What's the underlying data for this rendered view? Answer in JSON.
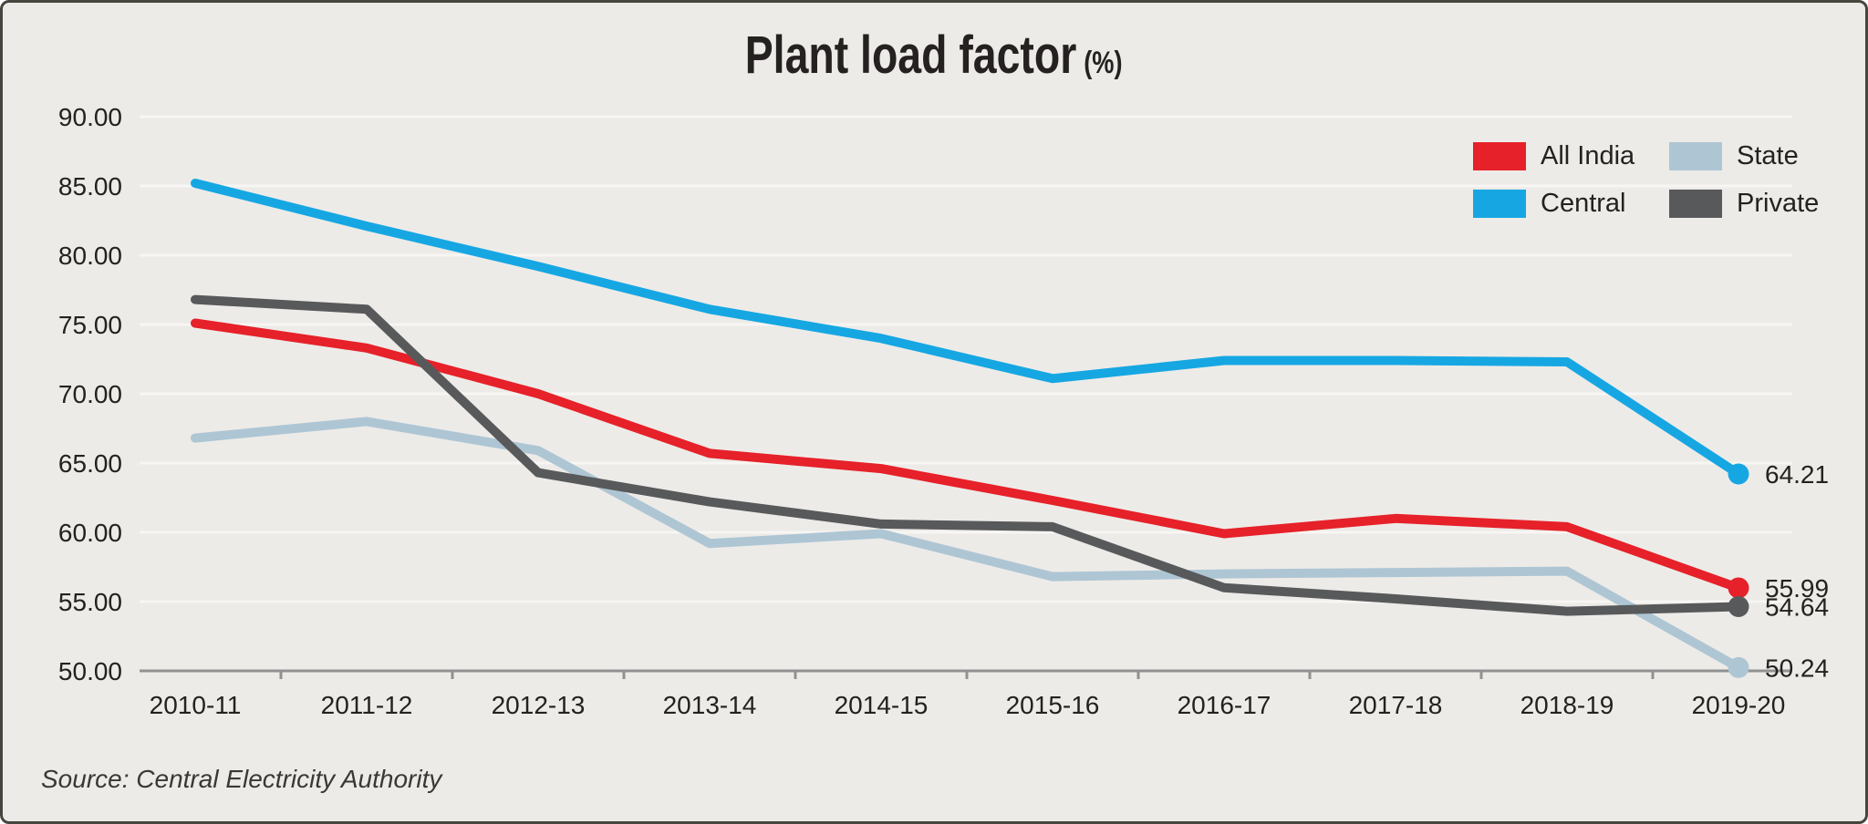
{
  "title": {
    "main": "Plant load factor",
    "unit": "(%)"
  },
  "source": "Source: Central Electricity Authority",
  "legend": {
    "items": [
      "All India",
      "State",
      "Central",
      "Private"
    ]
  },
  "colors": {
    "panel_bg": "#edebe8",
    "panel_border": "#48453f",
    "grid": "#f7f6f3",
    "axis": "#919191",
    "text": "#242120",
    "all_india": "#e62129",
    "central": "#16a7e3",
    "state": "#aec6d4",
    "private": "#58595b"
  },
  "chart_data": {
    "type": "line",
    "title": "Plant load factor (%)",
    "xlabel": "",
    "ylabel": "",
    "ylim": [
      50,
      90
    ],
    "grid": true,
    "legend_position": "top-right",
    "categories": [
      "2010-11",
      "2011-12",
      "2012-13",
      "2013-14",
      "2014-15",
      "2015-16",
      "2016-17",
      "2017-18",
      "2018-19",
      "2019-20"
    ],
    "yticks": [
      {
        "value": 90,
        "label": "90.00"
      },
      {
        "value": 85,
        "label": "85.00"
      },
      {
        "value": 80,
        "label": "80.00"
      },
      {
        "value": 75,
        "label": "75.00"
      },
      {
        "value": 70,
        "label": "70.00"
      },
      {
        "value": 65,
        "label": "65.00"
      },
      {
        "value": 60,
        "label": "60.00"
      },
      {
        "value": 55,
        "label": "55.00"
      },
      {
        "value": 50,
        "label": "50.00"
      }
    ],
    "series": [
      {
        "name": "All India",
        "color": "#e62129",
        "values": [
          75.1,
          73.3,
          70.0,
          65.7,
          64.6,
          62.3,
          59.9,
          61.0,
          60.4,
          55.99
        ],
        "end_label": "55.99"
      },
      {
        "name": "Central",
        "color": "#16a7e3",
        "values": [
          85.2,
          82.1,
          79.2,
          76.1,
          74.0,
          71.1,
          72.4,
          72.4,
          72.3,
          64.21
        ],
        "end_label": "64.21"
      },
      {
        "name": "State",
        "color": "#aec6d4",
        "values": [
          66.8,
          68.0,
          65.9,
          59.2,
          59.9,
          56.8,
          57.0,
          57.1,
          57.2,
          50.24
        ],
        "end_label": "50.24"
      },
      {
        "name": "Private",
        "color": "#58595b",
        "values": [
          76.8,
          76.1,
          64.3,
          62.2,
          60.6,
          60.4,
          56.0,
          55.2,
          54.3,
          54.64
        ],
        "end_label": "54.64"
      }
    ],
    "draw_order": [
      "State",
      "All India",
      "Private",
      "Central"
    ]
  }
}
